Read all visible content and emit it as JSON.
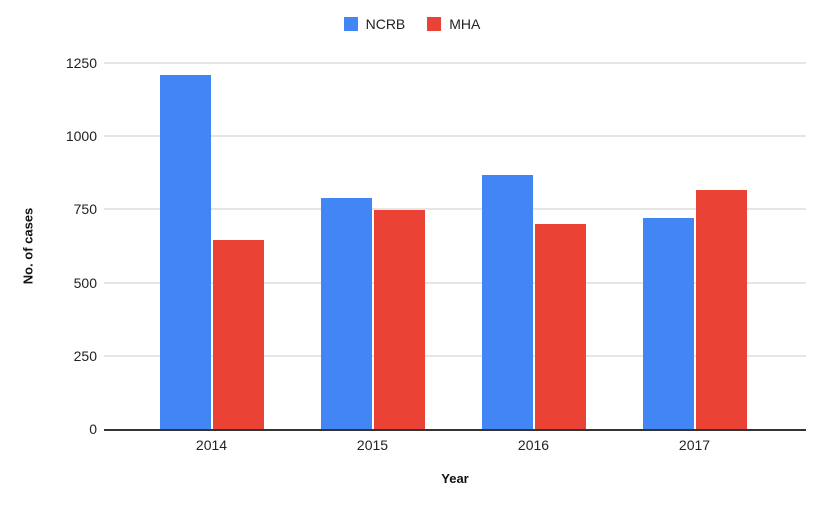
{
  "chart_data": {
    "type": "bar",
    "title": "",
    "categories": [
      "2014",
      "2015",
      "2016",
      "2017"
    ],
    "series": [
      {
        "name": "NCRB",
        "color": "#4285F4",
        "values": [
          1210,
          788,
          868,
          720
        ]
      },
      {
        "name": "MHA",
        "color": "#EA4335",
        "values": [
          645,
          747,
          700,
          818
        ]
      }
    ],
    "xlabel": "Year",
    "ylabel": "No. of cases",
    "yticks": [
      0,
      250,
      500,
      750,
      1000,
      1250
    ],
    "ylim": [
      0,
      1250
    ],
    "grid": true,
    "legend_position": "top",
    "colors": {
      "background": "#ffffff",
      "gridline": "#e6e6e6",
      "axis_line": "#333333",
      "tick_text": "#222222"
    }
  }
}
